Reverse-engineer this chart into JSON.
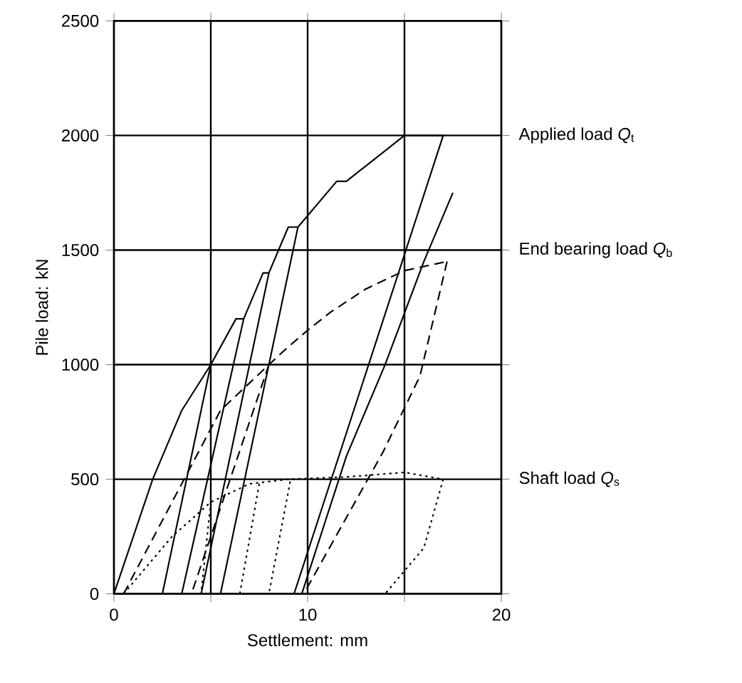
{
  "chart_data": {
    "type": "line",
    "xlabel": "Settlement: mm",
    "ylabel": "Pile load: kN",
    "xlim": [
      0,
      20
    ],
    "ylim": [
      0,
      2500
    ],
    "xticks": [
      0,
      {
        "value": 5,
        "label": null
      },
      10,
      {
        "value": 15,
        "label": null
      },
      20
    ],
    "yticks": [
      0,
      500,
      1000,
      1500,
      2000,
      2500
    ],
    "grid": true,
    "marker": "none",
    "series": [
      {
        "color": "#000000",
        "line_style": "solid",
        "x": [
          0,
          2,
          3.5,
          5,
          6.3,
          6.7,
          7.7,
          8,
          9,
          9.5,
          11.5,
          12,
          15,
          17,
          null,
          5,
          2.5,
          null,
          6.7,
          3.5,
          null,
          8,
          4.5,
          null,
          9.5,
          5.5,
          null,
          17,
          9.3,
          null,
          9.7,
          12,
          14,
          16,
          17.5
        ],
        "values": [
          0,
          500,
          800,
          1000,
          1200,
          1200,
          1400,
          1400,
          1600,
          1600,
          1800,
          1800,
          2000,
          2000,
          null,
          1000,
          0,
          null,
          1200,
          0,
          null,
          1400,
          0,
          null,
          1600,
          0,
          null,
          2000,
          0,
          null,
          0,
          600,
          1000,
          1450,
          1750
        ]
      },
      {
        "color": "#000000",
        "line_style": "dashed",
        "x": [
          0.5,
          3,
          5.5,
          8,
          8.9,
          10,
          11.2,
          13,
          15,
          17.2,
          null,
          8,
          4,
          null,
          17.2,
          15.8,
          13.9,
          9.8
        ],
        "values": [
          0,
          400,
          800,
          1000,
          1070,
          1150,
          1230,
          1330,
          1410,
          1450,
          null,
          1000,
          0,
          null,
          1450,
          950,
          620,
          0
        ]
      },
      {
        "color": "#000000",
        "line_style": "dotted",
        "x": [
          0.5,
          3,
          5,
          7,
          9,
          12,
          15,
          17,
          16,
          15,
          14,
          null,
          7.5,
          6.5,
          null,
          9.1,
          8,
          null,
          5,
          4.5
        ],
        "values": [
          0,
          250,
          400,
          480,
          500,
          510,
          530,
          500,
          200,
          100,
          0,
          null,
          480,
          0,
          null,
          490,
          0,
          null,
          400,
          0
        ]
      }
    ],
    "annotations": [
      "Applied load *Q*$_{t}$",
      "End bearing load *Q*$_{b}$",
      "Shaft load *Q*$_{s}$"
    ]
  }
}
